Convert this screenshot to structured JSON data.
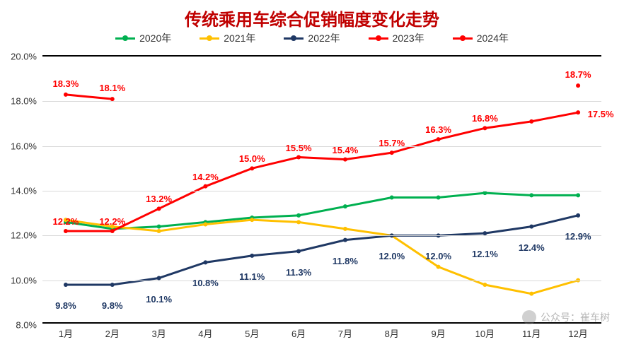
{
  "chart": {
    "type": "line",
    "title": "传统乘用车综合促销幅度变化走势",
    "title_color": "#c00000",
    "title_fontsize": 24,
    "background_color": "#ffffff",
    "grid_color": "#d9d9d9",
    "axis_color": "#000000",
    "label_fontsize": 13,
    "categories": [
      "1月",
      "2月",
      "3月",
      "4月",
      "5月",
      "6月",
      "7月",
      "8月",
      "9月",
      "10月",
      "11月",
      "12月"
    ],
    "ylim": [
      8.0,
      20.0
    ],
    "ytick_step": 2.0,
    "y_format_suffix": "%",
    "y_decimals": 1,
    "marker_style": "circle",
    "marker_size": 6,
    "line_width": 3,
    "series": [
      {
        "name": "2020年",
        "color": "#00b050",
        "values": [
          12.6,
          12.3,
          12.4,
          12.6,
          12.8,
          12.9,
          13.3,
          13.7,
          13.7,
          13.9,
          13.8,
          13.8
        ],
        "show_labels": false
      },
      {
        "name": "2021年",
        "color": "#ffc000",
        "values": [
          12.7,
          12.4,
          12.2,
          12.5,
          12.7,
          12.6,
          12.3,
          12.0,
          10.6,
          9.8,
          9.4,
          10.0
        ],
        "show_labels": false
      },
      {
        "name": "2022年",
        "color": "#1f3864",
        "values": [
          9.8,
          9.8,
          10.1,
          10.8,
          11.1,
          11.3,
          11.8,
          12.0,
          12.0,
          12.1,
          12.4,
          12.9
        ],
        "show_labels": true,
        "label_position": "below",
        "label_offset_y": 22,
        "label_color": "#1f3864"
      },
      {
        "name": "2023年",
        "color": "#ff0000",
        "values": [
          12.2,
          12.2,
          13.2,
          14.2,
          15.0,
          15.5,
          15.4,
          15.7,
          16.3,
          16.8,
          17.1,
          17.5
        ],
        "show_labels": true,
        "label_position": "above",
        "label_offset_y": -6,
        "label_color": "#ff0000",
        "label_skip_indices": [
          10
        ],
        "label_nudges": {
          "11": [
            32,
            16
          ]
        }
      },
      {
        "name": "2024年",
        "color": "#ff0000",
        "values": [
          18.3,
          18.1,
          null,
          null,
          null,
          null,
          null,
          null,
          null,
          null,
          null,
          18.7
        ],
        "show_labels": true,
        "label_position": "above",
        "label_offset_y": -8,
        "label_color": "#ff0000",
        "last_only_segment": true
      }
    ],
    "watermark": "公众号：崔车树"
  }
}
